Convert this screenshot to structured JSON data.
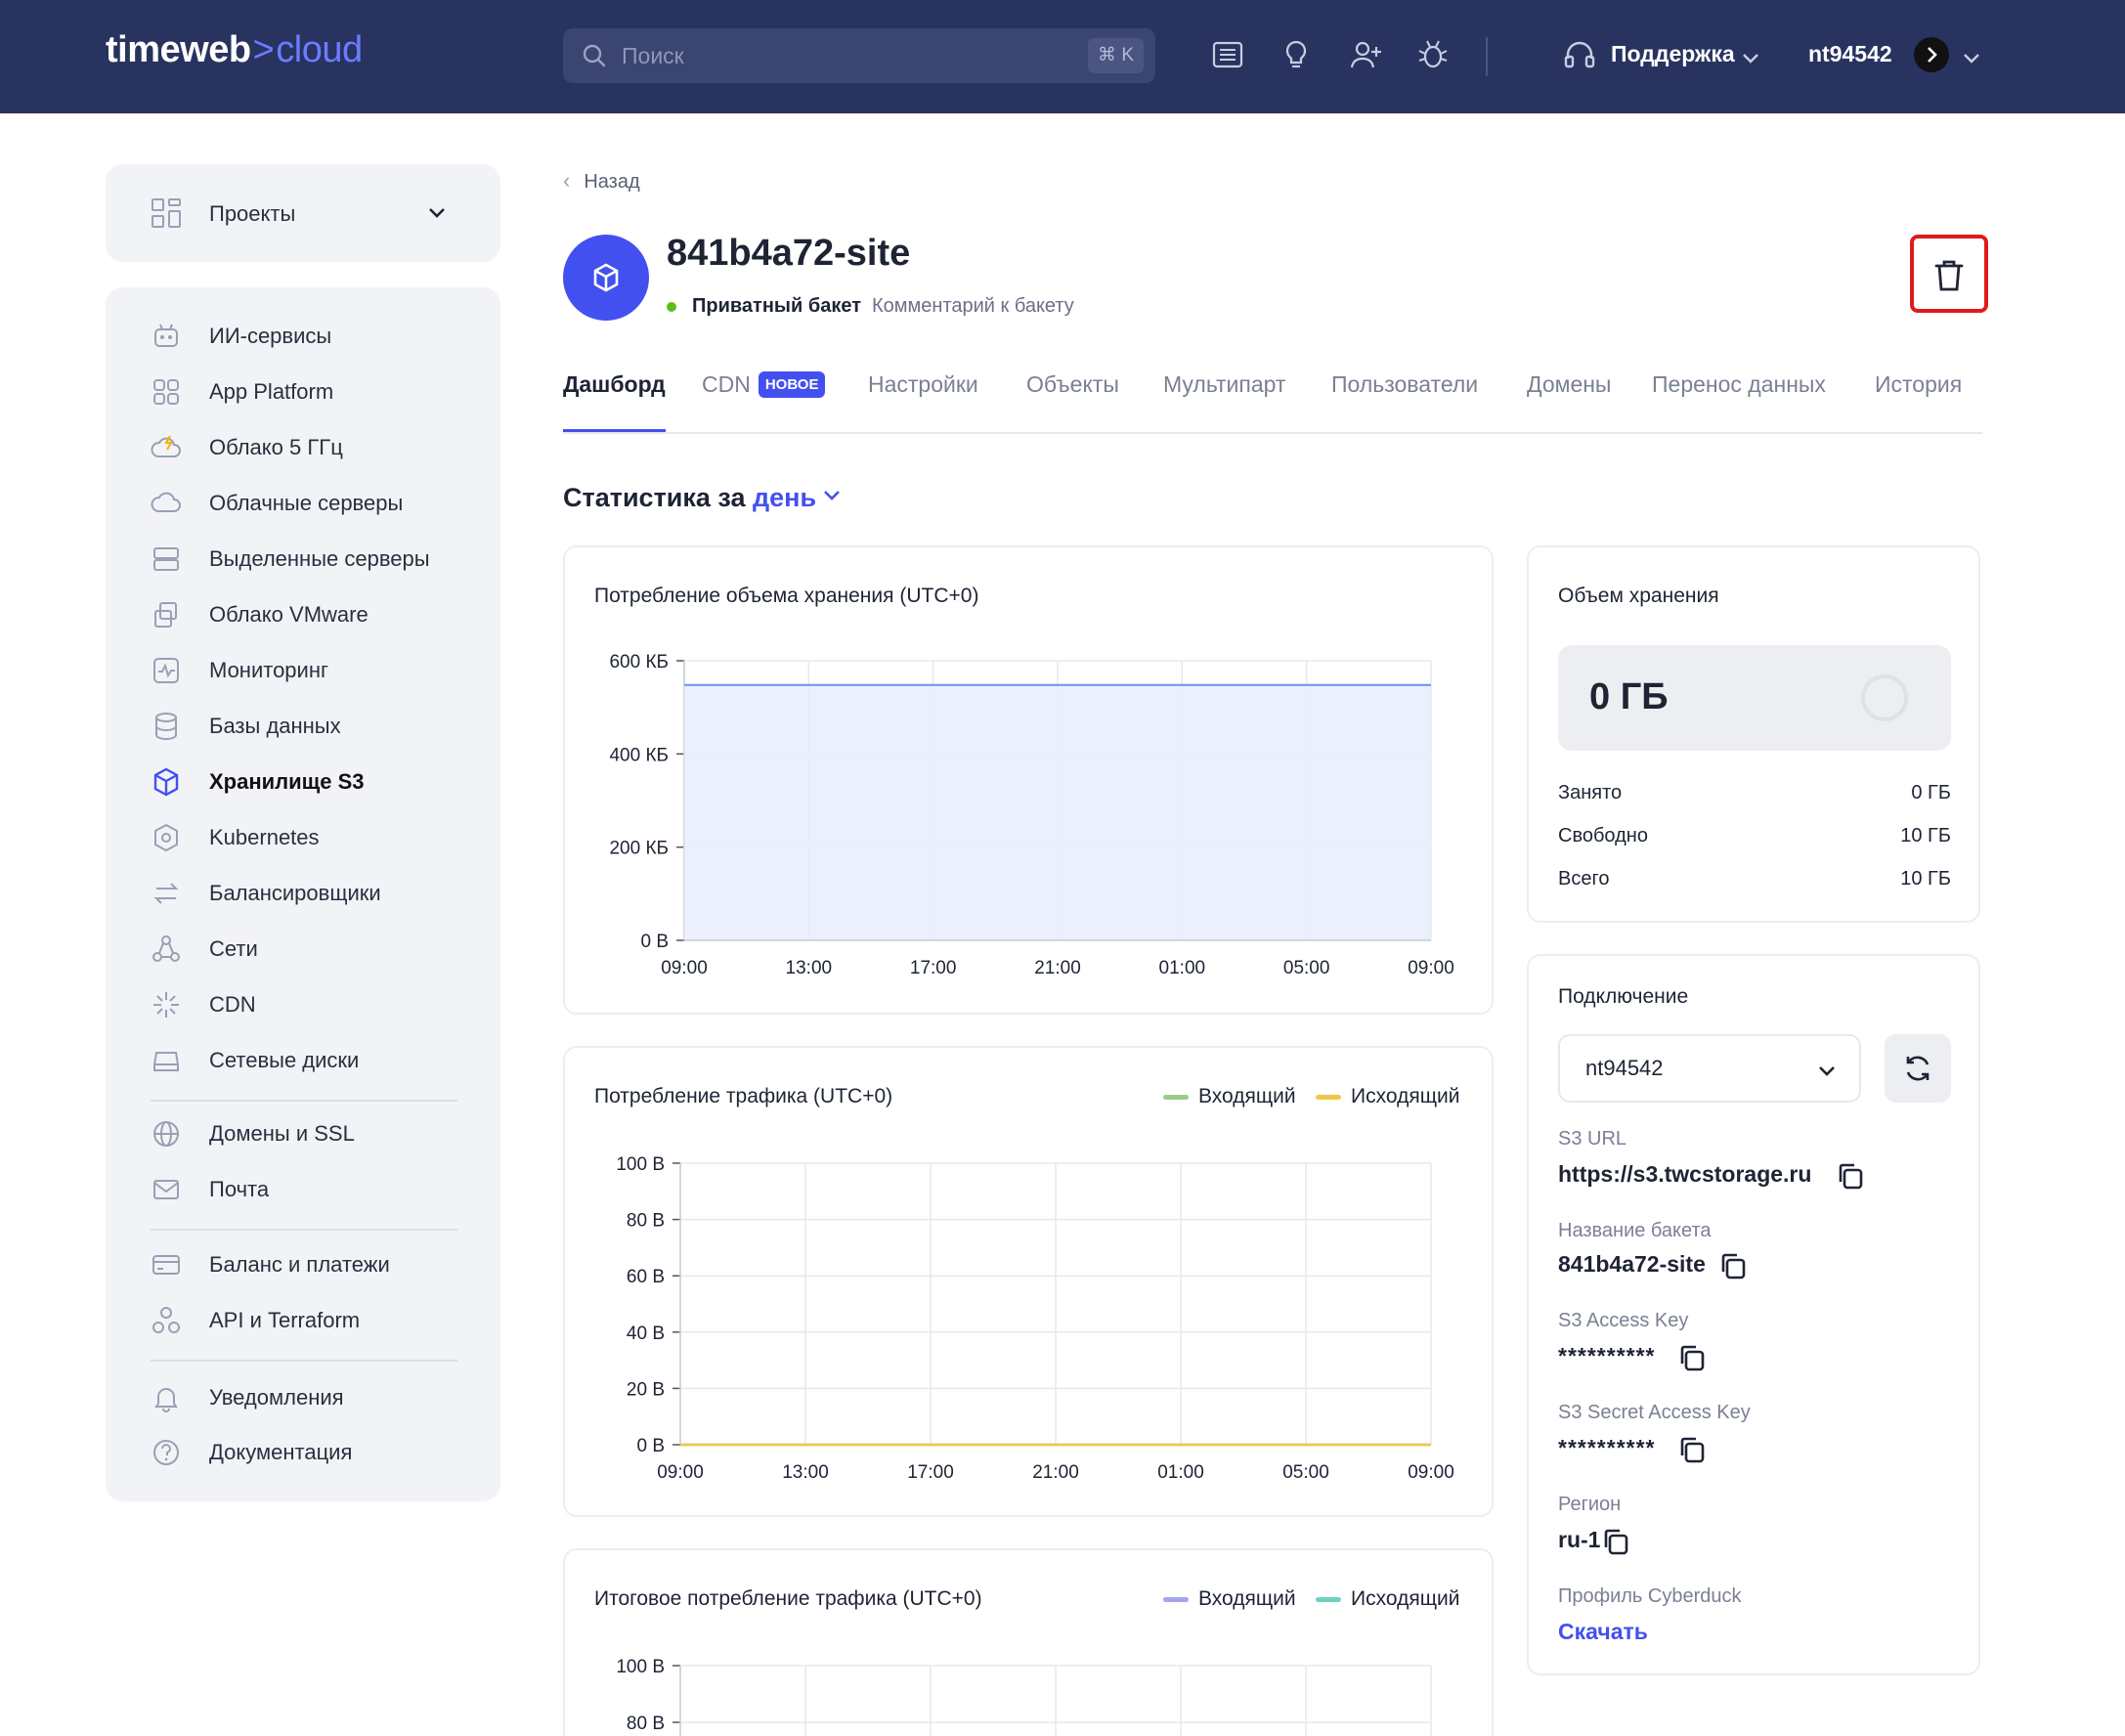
{
  "header": {
    "logo_main": "timeweb",
    "logo_caret": ">",
    "logo_accent": "cloud",
    "search_placeholder": "Поиск",
    "search_shortcut": "⌘ K",
    "support_label": "Поддержка",
    "user_label": "nt94542",
    "icons": [
      "news-icon",
      "idea-icon",
      "add-user-icon",
      "bug-icon"
    ]
  },
  "sidebar": {
    "projects_label": "Проекты",
    "groups": [
      [
        {
          "label": "ИИ-сервисы",
          "icon": "ai-robot-icon"
        },
        {
          "label": "App Platform",
          "icon": "app-grid-icon"
        },
        {
          "label": "Облако 5 ГГц",
          "icon": "cloud-bolt-icon"
        },
        {
          "label": "Облачные серверы",
          "icon": "cloud-icon"
        },
        {
          "label": "Выделенные серверы",
          "icon": "server-icon"
        },
        {
          "label": "Облако VMware",
          "icon": "vmware-icon"
        },
        {
          "label": "Мониторинг",
          "icon": "monitoring-icon"
        },
        {
          "label": "Базы данных",
          "icon": "database-icon"
        },
        {
          "label": "Хранилище S3",
          "icon": "s3-cube-icon",
          "active": true
        },
        {
          "label": "Kubernetes",
          "icon": "kubernetes-icon"
        },
        {
          "label": "Балансировщики",
          "icon": "balancer-icon"
        },
        {
          "label": "Сети",
          "icon": "network-icon"
        },
        {
          "label": "CDN",
          "icon": "cdn-icon"
        },
        {
          "label": "Сетевые диски",
          "icon": "disk-icon"
        }
      ],
      [
        {
          "label": "Домены и SSL",
          "icon": "globe-icon"
        },
        {
          "label": "Почта",
          "icon": "mail-icon"
        }
      ],
      [
        {
          "label": "Баланс и платежи",
          "icon": "card-icon"
        },
        {
          "label": "API и Terraform",
          "icon": "api-icon"
        }
      ],
      [
        {
          "label": "Уведомления",
          "icon": "bell-icon"
        },
        {
          "label": "Документация",
          "icon": "help-icon"
        }
      ]
    ]
  },
  "page": {
    "back_label": "Назад",
    "title": "841b4a72-site",
    "status": "Приватный бакет",
    "comment": "Комментарий к бакету",
    "tabs": [
      "Дашборд",
      "CDN",
      "Настройки",
      "Объекты",
      "Мультипарт",
      "Пользователи",
      "Домены",
      "Перенос данных",
      "История"
    ],
    "cdn_badge": "НОВОЕ",
    "stats_prefix": "Статистика за",
    "stats_period": "день"
  },
  "charts": {
    "storage_title": "Потребление объема хранения (UTC+0)",
    "traffic_title": "Потребление трафика (UTC+0)",
    "total_title": "Итоговое потребление трафика (UTC+0)",
    "legend_in": "Входящий",
    "legend_out": "Исходящий"
  },
  "chart_data": [
    {
      "type": "area",
      "title": "Потребление объема хранения (UTC+0)",
      "x": [
        "09:00",
        "13:00",
        "17:00",
        "21:00",
        "01:00",
        "05:00",
        "09:00"
      ],
      "y_ticks": [
        "0 B",
        "200 КБ",
        "400 КБ",
        "600 КБ"
      ],
      "ylim": [
        0,
        600
      ],
      "series": [
        {
          "values": [
            548,
            548,
            548,
            548,
            548,
            548,
            548
          ]
        }
      ],
      "color": "#6b8ef0",
      "fill": "#e8edfb",
      "grid": true
    },
    {
      "type": "line",
      "title": "Потребление трафика (UTC+0)",
      "x": [
        "09:00",
        "13:00",
        "17:00",
        "21:00",
        "01:00",
        "05:00",
        "09:00"
      ],
      "y_ticks": [
        "0 B",
        "20 B",
        "40 B",
        "60 B",
        "80 B",
        "100 B"
      ],
      "ylim": [
        0,
        100
      ],
      "series": [
        {
          "name": "Входящий",
          "values": [
            0,
            0,
            0,
            0,
            0,
            0,
            0
          ],
          "color": "#9acb8c"
        },
        {
          "name": "Исходящий",
          "values": [
            0,
            0,
            0,
            0,
            0,
            0,
            0
          ],
          "color": "#f0c84a"
        }
      ],
      "legend": "top-right",
      "grid": true
    },
    {
      "type": "bar",
      "title": "Итоговое потребление трафика (UTC+0)",
      "y_ticks": [
        "80 B",
        "100 B"
      ],
      "series": [
        {
          "name": "Входящий",
          "color": "#a5a4ee"
        },
        {
          "name": "Исходящий",
          "color": "#6cd3c2"
        }
      ],
      "legend": "top-right",
      "grid": true
    }
  ],
  "storage": {
    "title": "Объем хранения",
    "value": "0 ГБ",
    "rows": [
      {
        "label": "Занято",
        "value": "0 ГБ"
      },
      {
        "label": "Свободно",
        "value": "10 ГБ"
      },
      {
        "label": "Всего",
        "value": "10 ГБ"
      }
    ]
  },
  "connection": {
    "title": "Подключение",
    "user_select": "nt94542",
    "fields": [
      {
        "label": "S3 URL",
        "value": "https://s3.twcstorage.ru"
      },
      {
        "label": "Название бакета",
        "value": "841b4a72-site"
      },
      {
        "label": "S3 Access Key",
        "value": "**********"
      },
      {
        "label": "S3 Secret Access Key",
        "value": "**********"
      },
      {
        "label": "Регион",
        "value": "ru-1"
      }
    ],
    "cyberduck_label": "Профиль Cyberduck",
    "download_label": "Скачать"
  }
}
